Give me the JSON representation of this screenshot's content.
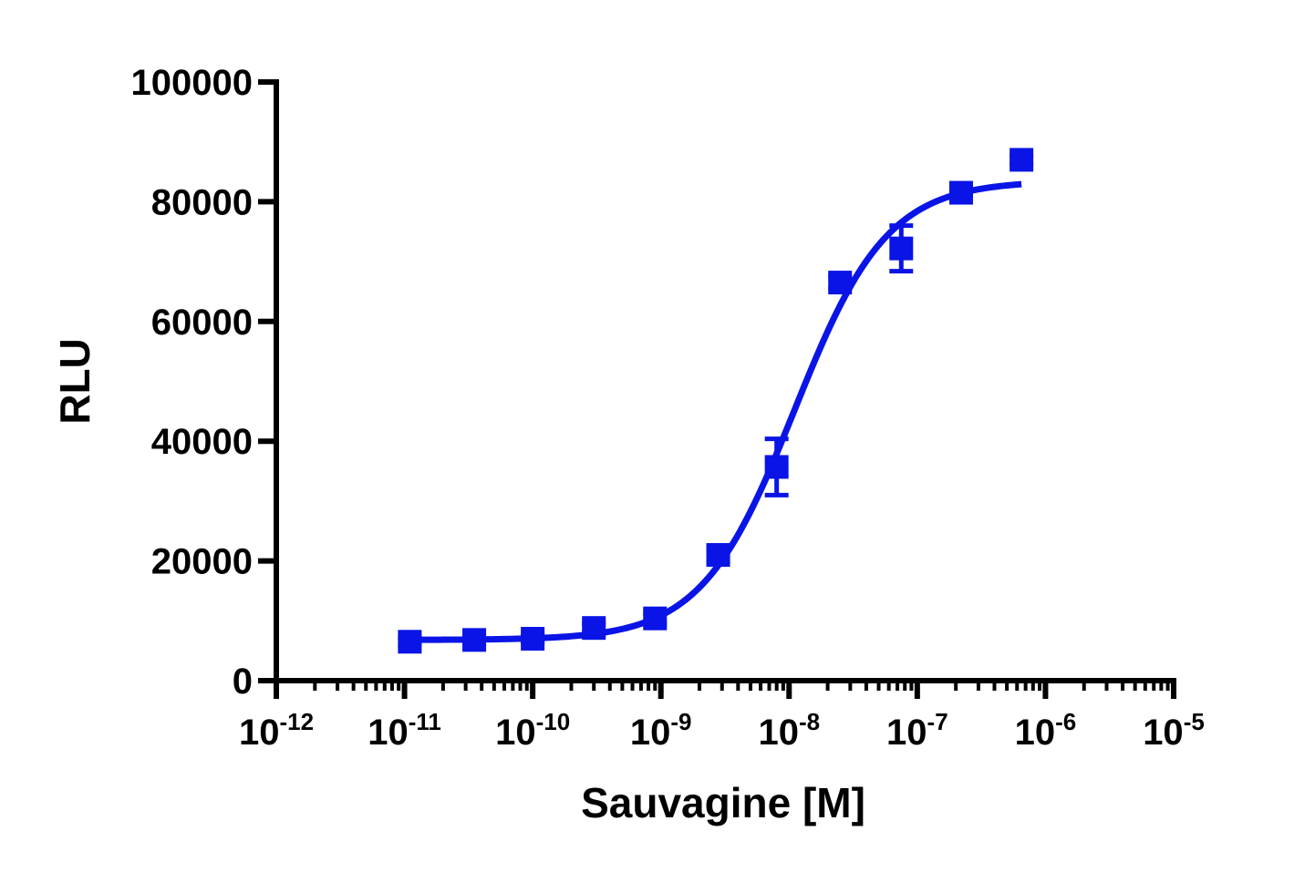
{
  "chart_data": {
    "type": "scatter",
    "title": "",
    "xlabel": "Sauvagine [M]",
    "ylabel": "RLU",
    "x_scale": "log",
    "xlim": [
      1e-12,
      1e-05
    ],
    "ylim": [
      0,
      100000
    ],
    "grid": false,
    "legend": "none",
    "x_ticks": [
      {
        "base": "10",
        "exp": "-12",
        "value": 1e-12
      },
      {
        "base": "10",
        "exp": "-11",
        "value": 1e-11
      },
      {
        "base": "10",
        "exp": "-10",
        "value": 1e-10
      },
      {
        "base": "10",
        "exp": "-9",
        "value": 1e-09
      },
      {
        "base": "10",
        "exp": "-8",
        "value": 1e-08
      },
      {
        "base": "10",
        "exp": "-7",
        "value": 1e-07
      },
      {
        "base": "10",
        "exp": "-6",
        "value": 1e-06
      },
      {
        "base": "10",
        "exp": "-5",
        "value": 1e-05
      }
    ],
    "y_ticks": [
      "0",
      "20000",
      "40000",
      "60000",
      "80000",
      "100000"
    ],
    "color": "#0a14e6",
    "series": [
      {
        "points": [
          {
            "x": 1.1e-11,
            "y": 6500,
            "err": 600
          },
          {
            "x": 3.5e-11,
            "y": 6800,
            "err": 600
          },
          {
            "x": 1e-10,
            "y": 7000,
            "err": 600
          },
          {
            "x": 3e-10,
            "y": 8800,
            "err": 800
          },
          {
            "x": 9e-10,
            "y": 10400,
            "err": 800
          },
          {
            "x": 2.8e-09,
            "y": 21000,
            "err": 1200
          },
          {
            "x": 8e-09,
            "y": 35700,
            "err": 4700
          },
          {
            "x": 2.5e-08,
            "y": 66500,
            "err": 1000
          },
          {
            "x": 7.5e-08,
            "y": 72200,
            "err": 3800
          },
          {
            "x": 2.2e-07,
            "y": 81500,
            "err": 600
          },
          {
            "x": 6.5e-07,
            "y": 87000,
            "err": 600
          }
        ],
        "fit": {
          "model": "4PL",
          "bottom": 6800,
          "top": 83500,
          "ec50": 1.1e-08,
          "hill": 1.2,
          "x_range": [
            1.1e-11,
            6.5e-07
          ]
        }
      }
    ]
  }
}
